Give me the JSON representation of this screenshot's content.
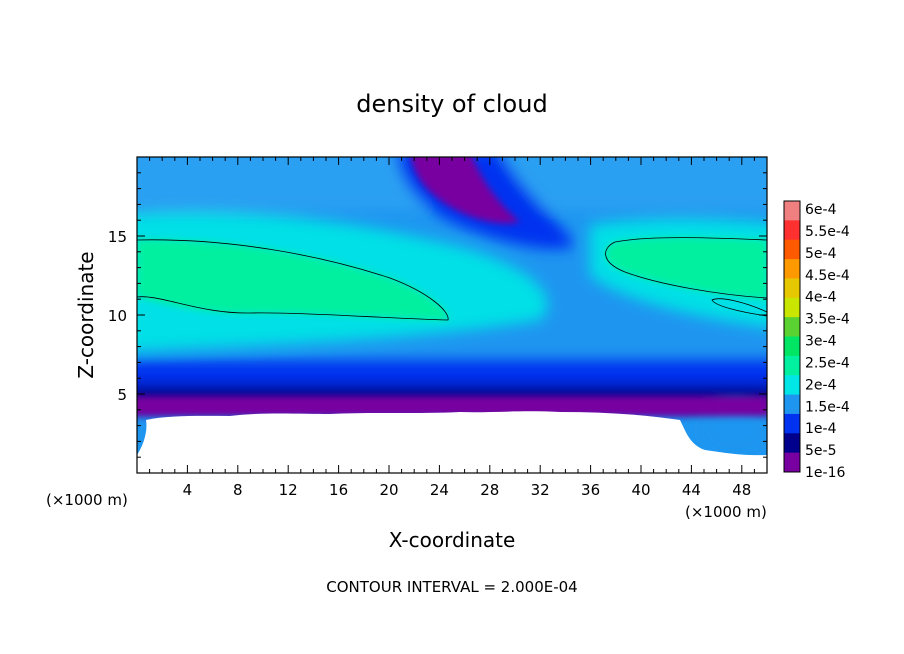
{
  "chart_data": {
    "type": "heatmap",
    "title": "density of cloud",
    "xlabel": "X-coordinate",
    "ylabel": "Z-coordinate",
    "x_unit_left": "(×1000 m)",
    "x_unit_right": "(×1000 m)",
    "footer": "CONTOUR INTERVAL = 2.000E-04",
    "xlim": [
      0,
      50
    ],
    "ylim": [
      0,
      20
    ],
    "x_ticks": [
      4,
      8,
      12,
      16,
      20,
      24,
      28,
      32,
      36,
      40,
      44,
      48
    ],
    "y_ticks": [
      5,
      10,
      15
    ],
    "grid": false,
    "legend_position": "right",
    "colorbar": {
      "labels": [
        "6e-4",
        "5.5e-4",
        "5e-4",
        "4.5e-4",
        "4e-4",
        "3.5e-4",
        "3e-4",
        "2.5e-4",
        "2e-4",
        "1.5e-4",
        "1e-4",
        "5e-5",
        "1e-16"
      ],
      "colors": [
        "#f08080",
        "#ff3030",
        "#ff5a00",
        "#ff9900",
        "#e6c800",
        "#c8e600",
        "#5ad232",
        "#00e664",
        "#00f0a0",
        "#00e6e6",
        "#1e96f0",
        "#0032f0",
        "#00008c",
        "#7800a0"
      ]
    },
    "regions": [
      {
        "name": "upper layer",
        "z_range": [
          15,
          20
        ],
        "value_level": "1e-4 to 1.5e-4"
      },
      {
        "name": "cloud core band (left)",
        "x_range": [
          0,
          25
        ],
        "z_range": [
          10,
          15
        ],
        "value_level": "2e-4 to 2.5e-4"
      },
      {
        "name": "cloud core band (right)",
        "x_range": [
          38,
          50
        ],
        "z_range": [
          10,
          15
        ],
        "value_level": "2e-4 to 2.5e-4"
      },
      {
        "name": "low-density plume",
        "x_range": [
          22,
          28
        ],
        "z_range": [
          16,
          20
        ],
        "value_level": "1e-16"
      },
      {
        "name": "no-data ground",
        "z_range": [
          0,
          4
        ],
        "value_level": "none"
      }
    ]
  }
}
